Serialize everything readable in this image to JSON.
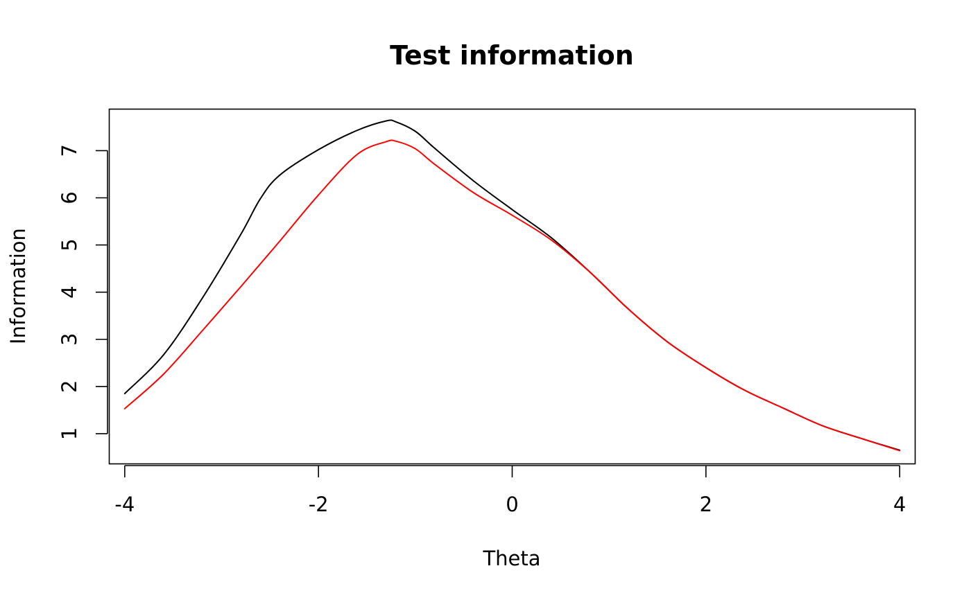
{
  "chart_data": {
    "type": "line",
    "title": "Test information",
    "xlabel": "Theta",
    "ylabel": "Information",
    "xlim": [
      -4.16,
      4.16
    ],
    "ylim": [
      0.36,
      7.88
    ],
    "x_ticks": [
      -4,
      -2,
      0,
      2,
      4
    ],
    "x_tick_labels": [
      "-4",
      "-2",
      "0",
      "2",
      "4"
    ],
    "y_ticks": [
      1,
      2,
      3,
      4,
      5,
      6,
      7
    ],
    "y_tick_labels": [
      "1",
      "2",
      "3",
      "4",
      "5",
      "6",
      "7"
    ],
    "grid": false,
    "legend": "none",
    "x": [
      -4.0,
      -3.6,
      -3.2,
      -2.8,
      -2.6,
      -2.4,
      -2.0,
      -1.6,
      -1.3,
      -1.2,
      -1.0,
      -0.8,
      -0.4,
      0.0,
      0.4,
      0.8,
      1.2,
      1.6,
      2.0,
      2.4,
      2.8,
      3.2,
      3.6,
      4.0
    ],
    "series": [
      {
        "color": "#000000",
        "values": [
          1.85,
          2.67,
          3.87,
          5.23,
          5.98,
          6.48,
          7.02,
          7.43,
          7.63,
          7.61,
          7.41,
          7.05,
          6.36,
          5.75,
          5.16,
          4.43,
          3.64,
          2.95,
          2.4,
          1.92,
          1.54,
          1.17,
          0.9,
          0.65
        ]
      },
      {
        "color": "#ff0000",
        "values": [
          1.53,
          2.26,
          3.18,
          4.12,
          4.6,
          5.08,
          6.06,
          6.92,
          7.19,
          7.2,
          7.04,
          6.71,
          6.11,
          5.63,
          5.11,
          4.43,
          3.64,
          2.95,
          2.4,
          1.92,
          1.54,
          1.17,
          0.9,
          0.64
        ]
      }
    ]
  }
}
